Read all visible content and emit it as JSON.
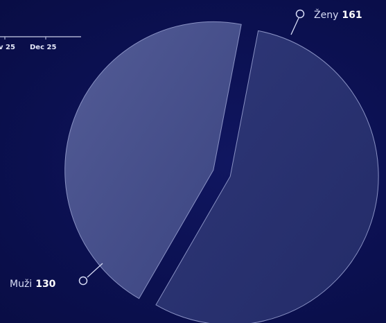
{
  "background_color": "#0c1152",
  "mini_axis": {
    "tick_labels": [
      "v 25",
      "Dec 25"
    ]
  },
  "chart_data": {
    "type": "pie",
    "exploded": true,
    "slices": [
      {
        "label": "Ženy",
        "value": 161,
        "color": "#283170"
      },
      {
        "label": "Muži",
        "value": 130,
        "color": "#434c87"
      }
    ]
  }
}
